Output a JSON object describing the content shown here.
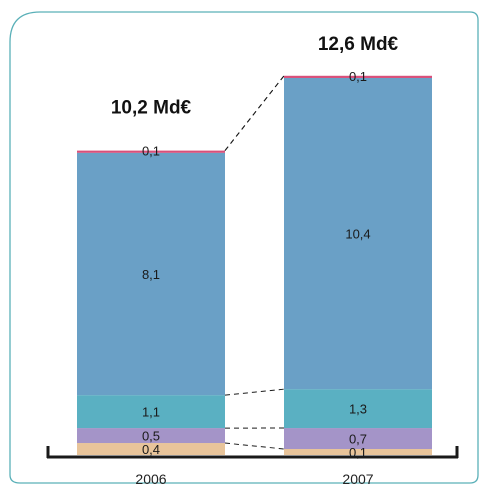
{
  "colors": {
    "panel_border": "#5ab0b8",
    "baseline": "#1a1a1a",
    "connector": "#1a1a1a"
  },
  "chart_data": {
    "type": "bar",
    "stacked": true,
    "categories": [
      "2006",
      "2007"
    ],
    "totals": [
      "10,2 Md€",
      "12,6 Md€"
    ],
    "series": [
      {
        "values": [
          0.4,
          0.1
        ],
        "labels": [
          "0,4",
          "0,1"
        ],
        "color": "#e8c49a"
      },
      {
        "values": [
          0.5,
          0.7
        ],
        "labels": [
          "0,5",
          "0,7"
        ],
        "color": "#a494c8"
      },
      {
        "values": [
          1.1,
          1.3
        ],
        "labels": [
          "1,1",
          "1,3"
        ],
        "color": "#5ab0c2"
      },
      {
        "values": [
          8.1,
          10.4
        ],
        "labels": [
          "8,1",
          "10,4"
        ],
        "color": "#6aa0c6"
      },
      {
        "values": [
          0.1,
          0.1
        ],
        "labels": [
          "0,1",
          "0,1"
        ],
        "color": "#d9507a"
      }
    ],
    "connectors": "dashed lines between stacked segment boundaries",
    "grid": false,
    "legend": "none"
  }
}
